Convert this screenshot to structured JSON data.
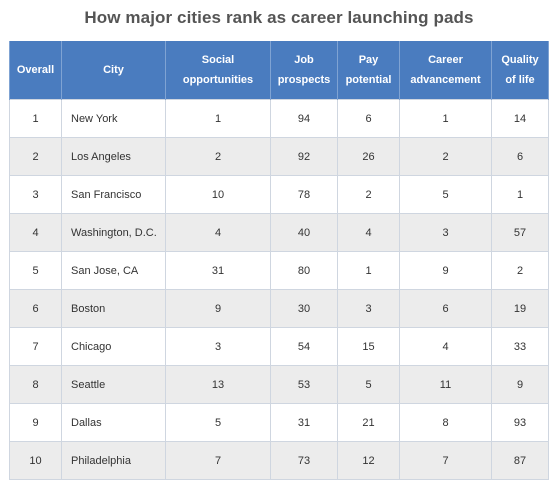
{
  "chart_data": {
    "type": "table",
    "title": "How major cities rank as career launching pads",
    "columns": [
      "Overall",
      "City",
      "Social opportunities",
      "Job prospects",
      "Pay potential",
      "Career advancement",
      "Quality of life"
    ],
    "header_lines": [
      [
        "Overall"
      ],
      [
        "City"
      ],
      [
        "Social",
        "opportunities"
      ],
      [
        "Job",
        "prospects"
      ],
      [
        "Pay",
        "potential"
      ],
      [
        "Career",
        "advancement"
      ],
      [
        "Quality",
        "of life"
      ]
    ],
    "rows": [
      [
        "1",
        "New York",
        "1",
        "94",
        "6",
        "1",
        "14"
      ],
      [
        "2",
        "Los Angeles",
        "2",
        "92",
        "26",
        "2",
        "6"
      ],
      [
        "3",
        "San Francisco",
        "10",
        "78",
        "2",
        "5",
        "1"
      ],
      [
        "4",
        "Washington, D.C.",
        "4",
        "40",
        "4",
        "3",
        "57"
      ],
      [
        "5",
        "San Jose, CA",
        "31",
        "80",
        "1",
        "9",
        "2"
      ],
      [
        "6",
        "Boston",
        "9",
        "30",
        "3",
        "6",
        "19"
      ],
      [
        "7",
        "Chicago",
        "3",
        "54",
        "15",
        "4",
        "33"
      ],
      [
        "8",
        "Seattle",
        "13",
        "53",
        "5",
        "11",
        "9"
      ],
      [
        "9",
        "Dallas",
        "5",
        "31",
        "21",
        "8",
        "93"
      ],
      [
        "10",
        "Philadelphia",
        "7",
        "73",
        "12",
        "7",
        "87"
      ]
    ],
    "header_color": "#4a7cbf",
    "stripe_color": "#ececec"
  }
}
